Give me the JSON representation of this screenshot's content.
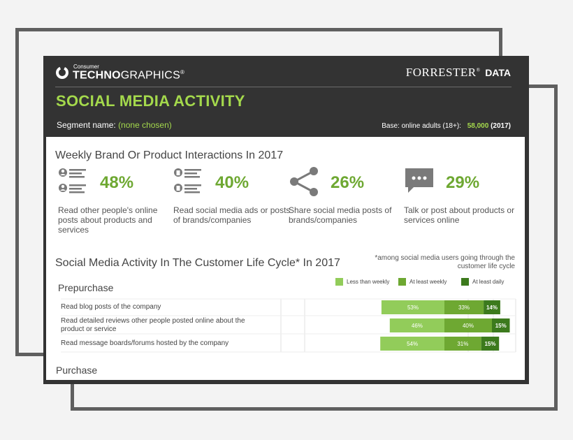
{
  "header": {
    "logo_small": "Consumer",
    "logo_big_bold": "TECHNO",
    "logo_big_rest": "GRAPHICS",
    "logo_mark": "®",
    "forrester": "FORRESTER",
    "forrester_mark": "®",
    "forrester_data": "DATA",
    "title": "SOCIAL MEDIA ACTIVITY",
    "segment_label": "Segment name:",
    "segment_value": "(none chosen)",
    "base_label": "Base: online adults (18+):",
    "base_value": "58,000",
    "base_year": "(2017)"
  },
  "weekly": {
    "title": "Weekly Brand Or Product Interactions In 2017",
    "stats": [
      {
        "icon": "reading-posts-icon",
        "percent": "48%",
        "label": "Read other people's online posts about products and services"
      },
      {
        "icon": "reading-ads-icon",
        "percent": "40%",
        "label": "Read social media ads or posts of brands/companies"
      },
      {
        "icon": "share-icon",
        "percent": "26%",
        "label": "Share social media posts of brands/companies"
      },
      {
        "icon": "chat-bubble-icon",
        "percent": "29%",
        "label": "Talk or post about products or services online"
      }
    ]
  },
  "lifecycle": {
    "title": "Social Media Activity In The Customer Life Cycle* In 2017",
    "footnote": "*among social media users going through the customer life cycle",
    "prepurchase_label": "Prepurchase",
    "purchase_label": "Purchase"
  },
  "colors": {
    "green_light": "#92cc5a",
    "green_mid": "#6ea832",
    "green_dark": "#3c7a1d",
    "dark_bg": "#333333",
    "accent": "#a4d94c"
  },
  "chart_data": {
    "type": "bar",
    "stacked": true,
    "orientation": "horizontal",
    "categories": [
      "Read blog posts of the company",
      "Read detailed reviews other people posted online about the product or service",
      "Read message boards/forums hosted by the company"
    ],
    "series": [
      {
        "name": "Less than weekly",
        "values": [
          53,
          46,
          54
        ],
        "color": "#92cc5a"
      },
      {
        "name": "At least weekly",
        "values": [
          33,
          40,
          31
        ],
        "color": "#6ea832"
      },
      {
        "name": "At least daily",
        "values": [
          14,
          15,
          15
        ],
        "color": "#3c7a1d"
      }
    ],
    "value_labels": [
      [
        "53%",
        "33%",
        "14%"
      ],
      [
        "46%",
        "40%",
        "15%"
      ],
      [
        "54%",
        "31%",
        "15%"
      ]
    ],
    "grid": true,
    "legend": "top-right"
  }
}
